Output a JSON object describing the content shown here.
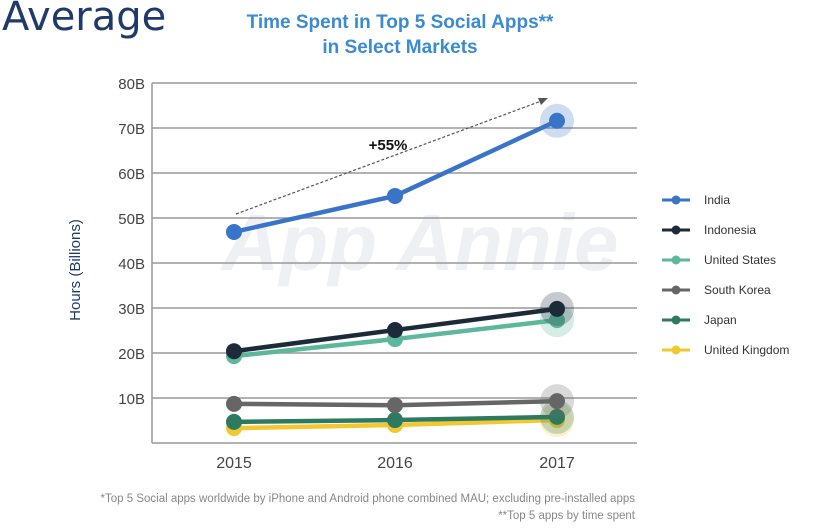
{
  "page_heading": "Average",
  "chart_data": {
    "type": "line",
    "title": "Time Spent in Top 5 Social Apps**",
    "subtitle": "in Select Markets",
    "ylabel": "Hours (Billions)",
    "xlabel": "",
    "categories": [
      "2015",
      "2016",
      "2017"
    ],
    "ylim": [
      0,
      80
    ],
    "yticks": [
      "10B",
      "20B",
      "30B",
      "40B",
      "50B",
      "60B",
      "70B",
      "80B"
    ],
    "grid": true,
    "legend_position": "right",
    "annotation": "+55%",
    "series": [
      {
        "name": "India",
        "color": "#3a74c9",
        "values": [
          46.9,
          54.9,
          71.6
        ]
      },
      {
        "name": "Indonesia",
        "color": "#1c2a3a",
        "values": [
          20.4,
          25.1,
          29.8
        ]
      },
      {
        "name": "United States",
        "color": "#5bb89a",
        "values": [
          19.3,
          23.1,
          27.3
        ]
      },
      {
        "name": "South Korea",
        "color": "#666666",
        "values": [
          8.7,
          8.4,
          9.3
        ]
      },
      {
        "name": "Japan",
        "color": "#2e7a60",
        "values": [
          4.7,
          5.1,
          5.8
        ]
      },
      {
        "name": "United Kingdom",
        "color": "#f2c830",
        "values": [
          3.3,
          4.0,
          5.1
        ]
      }
    ],
    "watermark": "App Annie"
  },
  "footnotes": [
    "*Top 5 Social apps worldwide by iPhone and Android phone combined MAU; excluding pre-installed apps",
    "**Top 5 apps by time spent"
  ]
}
